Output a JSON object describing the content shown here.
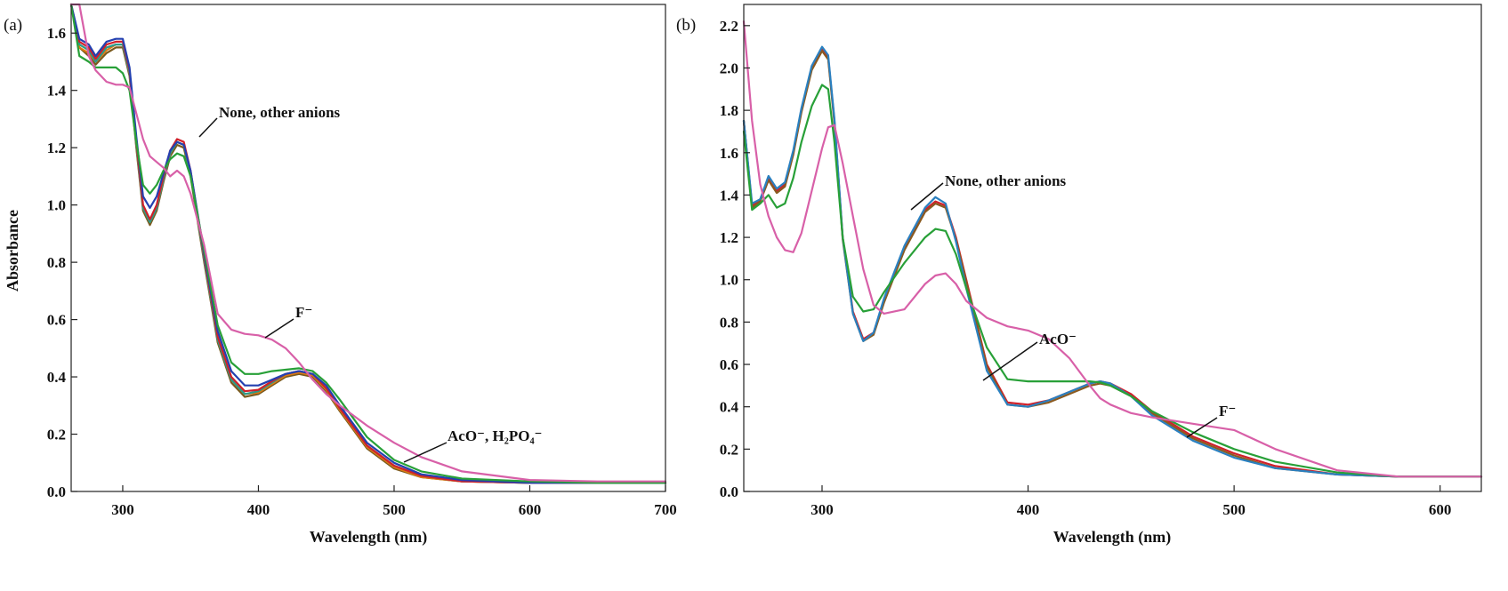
{
  "chart_data": [
    {
      "panel_label": "(a)",
      "type": "line",
      "xlabel": "Wavelength (nm)",
      "ylabel": "Absorbance",
      "xlim": [
        262,
        700
      ],
      "ylim": [
        0.0,
        1.7
      ],
      "xticks": [
        300,
        400,
        500,
        600,
        700
      ],
      "yticks": [
        0.0,
        0.2,
        0.4,
        0.6,
        0.8,
        1.0,
        1.2,
        1.4,
        1.6
      ],
      "grid": false,
      "legend": "none",
      "series": [
        {
          "color": "#7a5a1e",
          "x": [
            262,
            268,
            275,
            280,
            288,
            295,
            300,
            305,
            310,
            315,
            320,
            325,
            330,
            335,
            340,
            345,
            350,
            360,
            370,
            380,
            390,
            400,
            410,
            420,
            430,
            440,
            450,
            460,
            480,
            500,
            520,
            550,
            600,
            650,
            700
          ],
          "y": [
            1.7,
            1.55,
            1.52,
            1.49,
            1.53,
            1.55,
            1.55,
            1.45,
            1.2,
            0.98,
            0.93,
            0.98,
            1.08,
            1.17,
            1.21,
            1.2,
            1.1,
            0.8,
            0.52,
            0.38,
            0.33,
            0.34,
            0.37,
            0.4,
            0.41,
            0.4,
            0.35,
            0.28,
            0.15,
            0.08,
            0.05,
            0.035,
            0.03,
            0.03,
            0.03
          ]
        },
        {
          "color": "#e07a10",
          "x": [
            262,
            268,
            275,
            280,
            288,
            295,
            300,
            305,
            310,
            315,
            320,
            325,
            330,
            335,
            340,
            345,
            350,
            360,
            370,
            380,
            390,
            400,
            410,
            420,
            430,
            440,
            450,
            460,
            480,
            500,
            520,
            550,
            600,
            650,
            700
          ],
          "y": [
            1.7,
            1.55,
            1.53,
            1.5,
            1.54,
            1.56,
            1.56,
            1.46,
            1.21,
            0.99,
            0.94,
            0.99,
            1.09,
            1.18,
            1.22,
            1.21,
            1.11,
            0.81,
            0.53,
            0.39,
            0.34,
            0.345,
            0.375,
            0.405,
            0.415,
            0.405,
            0.355,
            0.285,
            0.155,
            0.085,
            0.05,
            0.035,
            0.03,
            0.03,
            0.03
          ]
        },
        {
          "color": "#2a9a8a",
          "x": [
            262,
            268,
            275,
            280,
            288,
            295,
            300,
            305,
            310,
            315,
            320,
            325,
            330,
            335,
            340,
            345,
            350,
            360,
            370,
            380,
            390,
            400,
            410,
            420,
            430,
            440,
            450,
            460,
            480,
            500,
            520,
            550,
            600,
            650,
            700
          ],
          "y": [
            1.7,
            1.56,
            1.54,
            1.5,
            1.55,
            1.56,
            1.56,
            1.46,
            1.21,
            0.99,
            0.94,
            0.99,
            1.09,
            1.18,
            1.22,
            1.21,
            1.11,
            0.81,
            0.53,
            0.39,
            0.34,
            0.35,
            0.38,
            0.41,
            0.42,
            0.41,
            0.36,
            0.29,
            0.16,
            0.09,
            0.055,
            0.035,
            0.03,
            0.03,
            0.03
          ]
        },
        {
          "color": "#d0202a",
          "x": [
            262,
            268,
            275,
            280,
            288,
            295,
            300,
            305,
            310,
            315,
            320,
            325,
            330,
            335,
            340,
            345,
            350,
            360,
            370,
            380,
            390,
            400,
            410,
            420,
            430,
            440,
            450,
            460,
            480,
            500,
            520,
            550,
            600,
            650,
            700
          ],
          "y": [
            1.7,
            1.57,
            1.55,
            1.51,
            1.56,
            1.57,
            1.57,
            1.47,
            1.22,
            1.0,
            0.95,
            1.0,
            1.1,
            1.19,
            1.23,
            1.22,
            1.12,
            0.82,
            0.54,
            0.4,
            0.35,
            0.355,
            0.385,
            0.41,
            0.42,
            0.41,
            0.36,
            0.29,
            0.16,
            0.09,
            0.055,
            0.035,
            0.03,
            0.03,
            0.03
          ]
        },
        {
          "color": "#2440b0",
          "x": [
            262,
            268,
            275,
            280,
            288,
            295,
            300,
            305,
            310,
            315,
            320,
            325,
            330,
            335,
            340,
            345,
            350,
            360,
            370,
            380,
            390,
            400,
            410,
            420,
            430,
            440,
            450,
            460,
            480,
            500,
            520,
            550,
            600,
            650,
            700
          ],
          "y": [
            1.7,
            1.58,
            1.56,
            1.52,
            1.57,
            1.58,
            1.58,
            1.48,
            1.24,
            1.03,
            0.99,
            1.03,
            1.11,
            1.19,
            1.22,
            1.21,
            1.12,
            0.83,
            0.56,
            0.42,
            0.37,
            0.37,
            0.39,
            0.41,
            0.42,
            0.41,
            0.37,
            0.3,
            0.17,
            0.1,
            0.06,
            0.04,
            0.03,
            0.03,
            0.03
          ]
        },
        {
          "color": "#28a038",
          "x": [
            262,
            268,
            275,
            280,
            288,
            295,
            300,
            305,
            310,
            315,
            320,
            325,
            330,
            335,
            340,
            345,
            350,
            360,
            370,
            380,
            390,
            400,
            410,
            420,
            430,
            440,
            450,
            460,
            480,
            500,
            520,
            550,
            600,
            650,
            700
          ],
          "y": [
            1.7,
            1.52,
            1.5,
            1.48,
            1.48,
            1.48,
            1.46,
            1.4,
            1.22,
            1.07,
            1.04,
            1.07,
            1.12,
            1.16,
            1.18,
            1.17,
            1.1,
            0.84,
            0.58,
            0.45,
            0.41,
            0.41,
            0.42,
            0.425,
            0.43,
            0.42,
            0.38,
            0.32,
            0.19,
            0.11,
            0.07,
            0.045,
            0.035,
            0.03,
            0.03
          ]
        },
        {
          "color": "#d860a8",
          "x": [
            262,
            268,
            275,
            280,
            288,
            295,
            300,
            305,
            310,
            315,
            320,
            325,
            330,
            335,
            340,
            345,
            350,
            360,
            370,
            380,
            390,
            400,
            410,
            420,
            430,
            440,
            450,
            460,
            480,
            500,
            520,
            550,
            600,
            650,
            700
          ],
          "y": [
            1.72,
            1.7,
            1.52,
            1.47,
            1.43,
            1.42,
            1.42,
            1.41,
            1.32,
            1.23,
            1.17,
            1.15,
            1.13,
            1.1,
            1.12,
            1.1,
            1.04,
            0.86,
            0.62,
            0.565,
            0.55,
            0.545,
            0.53,
            0.5,
            0.45,
            0.39,
            0.34,
            0.3,
            0.23,
            0.17,
            0.12,
            0.07,
            0.04,
            0.035,
            0.035
          ]
        }
      ],
      "annotations": [
        "None, other anions",
        "F⁻",
        "AcO⁻, H₂PO₄⁻"
      ]
    },
    {
      "panel_label": "(b)",
      "type": "line",
      "xlabel": "Wavelength (nm)",
      "ylabel": "",
      "xlim": [
        262,
        620
      ],
      "ylim": [
        0.0,
        2.3
      ],
      "xticks": [
        300,
        400,
        500,
        600
      ],
      "yticks": [
        0.0,
        0.2,
        0.4,
        0.6,
        0.8,
        1.0,
        1.2,
        1.4,
        1.6,
        1.8,
        2.0,
        2.2
      ],
      "grid": false,
      "legend": "none",
      "series": [
        {
          "color": "#d0202a",
          "x": [
            262,
            266,
            270,
            274,
            278,
            282,
            286,
            290,
            295,
            300,
            303,
            306,
            310,
            315,
            320,
            325,
            330,
            340,
            350,
            355,
            360,
            365,
            370,
            380,
            390,
            400,
            410,
            420,
            430,
            435,
            440,
            450,
            460,
            480,
            500,
            520,
            550,
            580,
            620
          ],
          "y": [
            1.75,
            1.35,
            1.38,
            1.48,
            1.42,
            1.45,
            1.6,
            1.8,
            2.0,
            2.09,
            2.05,
            1.75,
            1.2,
            0.85,
            0.72,
            0.75,
            0.9,
            1.15,
            1.33,
            1.37,
            1.35,
            1.2,
            1.0,
            0.6,
            0.42,
            0.41,
            0.43,
            0.47,
            0.51,
            0.52,
            0.51,
            0.46,
            0.38,
            0.26,
            0.18,
            0.12,
            0.08,
            0.07,
            0.07
          ]
        },
        {
          "color": "#8a5a20",
          "x": [
            262,
            266,
            270,
            274,
            278,
            282,
            286,
            290,
            295,
            300,
            303,
            306,
            310,
            315,
            320,
            325,
            330,
            340,
            350,
            355,
            360,
            365,
            370,
            380,
            390,
            400,
            410,
            420,
            430,
            435,
            440,
            450,
            460,
            480,
            500,
            520,
            550,
            580,
            620
          ],
          "y": [
            1.75,
            1.34,
            1.37,
            1.47,
            1.41,
            1.44,
            1.59,
            1.79,
            1.99,
            2.08,
            2.04,
            1.74,
            1.19,
            0.84,
            0.71,
            0.74,
            0.89,
            1.14,
            1.32,
            1.36,
            1.34,
            1.19,
            0.99,
            0.59,
            0.41,
            0.4,
            0.42,
            0.46,
            0.5,
            0.51,
            0.5,
            0.45,
            0.37,
            0.25,
            0.17,
            0.11,
            0.08,
            0.07,
            0.07
          ]
        },
        {
          "color": "#2a80c0",
          "x": [
            262,
            266,
            270,
            274,
            278,
            282,
            286,
            290,
            295,
            300,
            303,
            306,
            310,
            315,
            320,
            325,
            330,
            340,
            350,
            355,
            360,
            365,
            370,
            380,
            390,
            400,
            410,
            420,
            430,
            435,
            440,
            450,
            460,
            480,
            500,
            520,
            550,
            580,
            620
          ],
          "y": [
            1.75,
            1.36,
            1.38,
            1.49,
            1.43,
            1.46,
            1.61,
            1.81,
            2.01,
            2.1,
            2.06,
            1.76,
            1.2,
            0.84,
            0.71,
            0.75,
            0.91,
            1.16,
            1.34,
            1.39,
            1.36,
            1.18,
            0.96,
            0.57,
            0.41,
            0.4,
            0.43,
            0.47,
            0.51,
            0.52,
            0.51,
            0.45,
            0.36,
            0.24,
            0.16,
            0.11,
            0.08,
            0.07,
            0.07
          ]
        },
        {
          "color": "#28a038",
          "x": [
            262,
            266,
            270,
            274,
            278,
            282,
            286,
            290,
            295,
            300,
            303,
            306,
            310,
            315,
            320,
            325,
            330,
            340,
            350,
            355,
            360,
            365,
            370,
            380,
            390,
            400,
            410,
            420,
            430,
            435,
            440,
            450,
            460,
            480,
            500,
            520,
            550,
            580,
            620
          ],
          "y": [
            1.7,
            1.33,
            1.36,
            1.4,
            1.34,
            1.36,
            1.48,
            1.65,
            1.82,
            1.92,
            1.9,
            1.65,
            1.2,
            0.92,
            0.85,
            0.86,
            0.94,
            1.08,
            1.2,
            1.24,
            1.23,
            1.12,
            0.96,
            0.68,
            0.53,
            0.52,
            0.52,
            0.52,
            0.52,
            0.515,
            0.5,
            0.45,
            0.38,
            0.28,
            0.2,
            0.14,
            0.09,
            0.07,
            0.07
          ]
        },
        {
          "color": "#d860a8",
          "x": [
            262,
            266,
            270,
            274,
            278,
            282,
            286,
            290,
            295,
            300,
            303,
            306,
            310,
            315,
            320,
            325,
            330,
            340,
            350,
            355,
            360,
            365,
            370,
            380,
            390,
            400,
            410,
            420,
            430,
            435,
            440,
            450,
            460,
            480,
            500,
            520,
            550,
            580,
            620
          ],
          "y": [
            2.22,
            1.75,
            1.45,
            1.3,
            1.2,
            1.14,
            1.13,
            1.22,
            1.42,
            1.62,
            1.72,
            1.73,
            1.55,
            1.3,
            1.05,
            0.88,
            0.84,
            0.86,
            0.98,
            1.02,
            1.03,
            0.98,
            0.9,
            0.82,
            0.78,
            0.76,
            0.72,
            0.63,
            0.5,
            0.44,
            0.41,
            0.37,
            0.35,
            0.32,
            0.29,
            0.2,
            0.1,
            0.07,
            0.07
          ]
        }
      ],
      "annotations": [
        "None, other anions",
        "AcO⁻",
        "F⁻"
      ]
    }
  ]
}
